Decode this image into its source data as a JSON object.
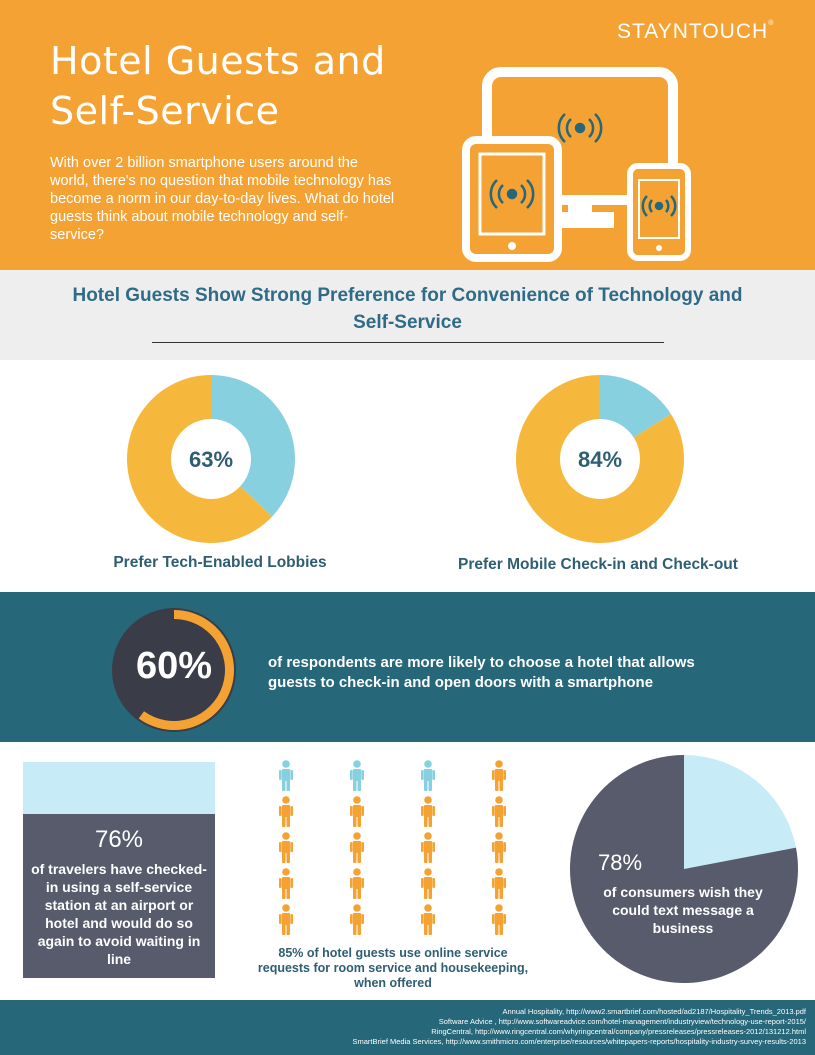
{
  "header": {
    "logo": "STAYNTOUCH",
    "logo_mark": "®",
    "title": "Hotel Guests and Self-Service",
    "intro": "With over 2 billion smartphone users around the world, there's no question that mobile technology has become a norm in our day-to-day lives. What do hotel guests think about mobile technology and self-service?",
    "illustration": "devices-wifi-icon"
  },
  "section": {
    "heading": "Hotel Guests Show Strong Preference for Convenience of Technology and Self-Service"
  },
  "colors": {
    "orange": "#f4a233",
    "yellow": "#f6b83c",
    "light_blue": "#87d0e0",
    "pale_blue": "#c8ecf7",
    "teal": "#266779",
    "slate": "#575b6b",
    "heading_blue": "#2f5e73"
  },
  "chart_data": [
    {
      "type": "pie",
      "style": "donut",
      "value_label": "63%",
      "label": "Prefer Tech-Enabled Lobbies",
      "slices": [
        {
          "value": 63,
          "color": "#f6b83c"
        },
        {
          "value": 37,
          "color": "#87d0e0"
        }
      ]
    },
    {
      "type": "pie",
      "style": "donut",
      "value_label": "84%",
      "label": "Prefer Mobile Check-in and Check-out",
      "slices": [
        {
          "value": 84,
          "color": "#f6b83c"
        },
        {
          "value": 16,
          "color": "#87d0e0"
        }
      ]
    },
    {
      "type": "pie",
      "style": "ring",
      "value_label": "60%",
      "label": "of respondents are more likely to choose a hotel that allows guests to check-in and open doors with a smartphone",
      "slices": [
        {
          "value": 60,
          "color": "#f4a233"
        },
        {
          "value": 40,
          "color": "#3a3d47"
        }
      ]
    },
    {
      "type": "bar",
      "style": "stacked-column",
      "value_label": "76%",
      "label": "of travelers have checked-in using a self-service station at an airport or hotel and would do so again to avoid waiting in line",
      "segments": [
        {
          "value": 76,
          "color": "#575b6b"
        },
        {
          "value": 24,
          "color": "#c8ecf7"
        }
      ]
    },
    {
      "type": "pictogram",
      "label": "85% of hotel guests use online service requests for room service and housekeeping, when offered",
      "icon": "person-icon",
      "columns": 4,
      "rows": 5,
      "highlighted_cells": [
        0,
        1,
        2
      ]
    },
    {
      "type": "pie",
      "value_label": "78%",
      "label": "of consumers wish they could text message a business",
      "slices": [
        {
          "value": 78,
          "color": "#575b6b"
        },
        {
          "value": 22,
          "color": "#c8ecf7"
        }
      ]
    }
  ],
  "footer": {
    "sources": [
      "Annual Hospitality, http://www2.smartbrief.com/hosted/ad2187/Hospitality_Trends_2013.pdf",
      "Software Advice , http://www.softwareadvice.com/hotel-management/industryview/technology-use-report-2015/",
      "RingCentral, http://www.ringcentral.com/whyringcentral/company/pressreleases/pressreleases-2012/131212.html",
      "SmartBrief Media Services, http://www.smithmicro.com/enterprise/resources/whitepapers-reports/hospitality-industry-survey-results-2013"
    ]
  }
}
